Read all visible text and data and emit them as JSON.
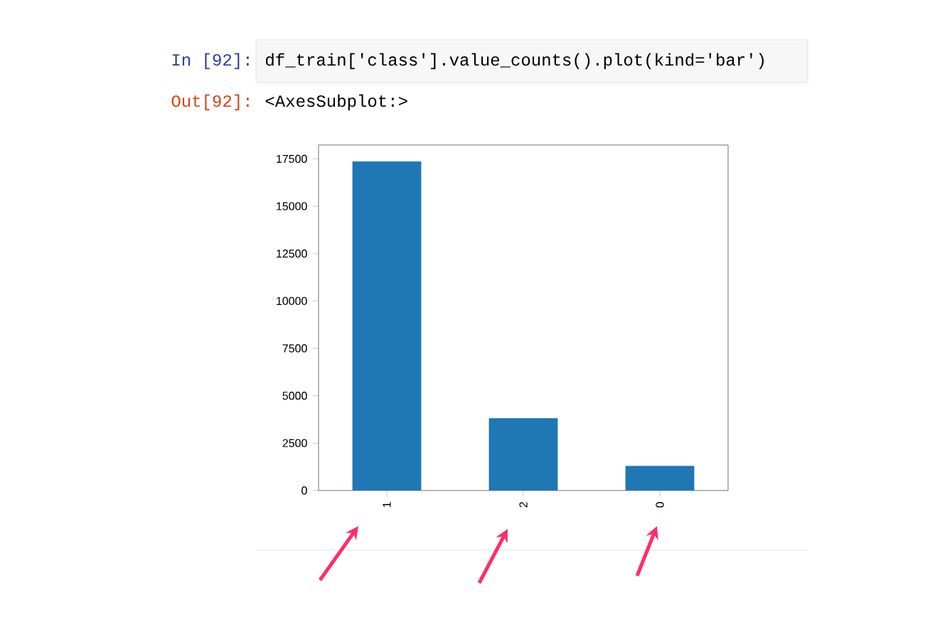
{
  "chart_data": {
    "type": "bar",
    "categories": [
      "1",
      "2",
      "0"
    ],
    "values": [
      17350,
      3800,
      1280
    ],
    "color": "#1f77b4",
    "ylim": [
      0,
      18230
    ],
    "yticks": [
      0,
      2500,
      5000,
      7500,
      10000,
      12500,
      15000,
      17500
    ],
    "annotations": [
      "In [92]:",
      "df_train['class'].value_counts().plot(kind='bar')",
      "Out[92]:",
      "<AxesSubplot:>"
    ]
  }
}
